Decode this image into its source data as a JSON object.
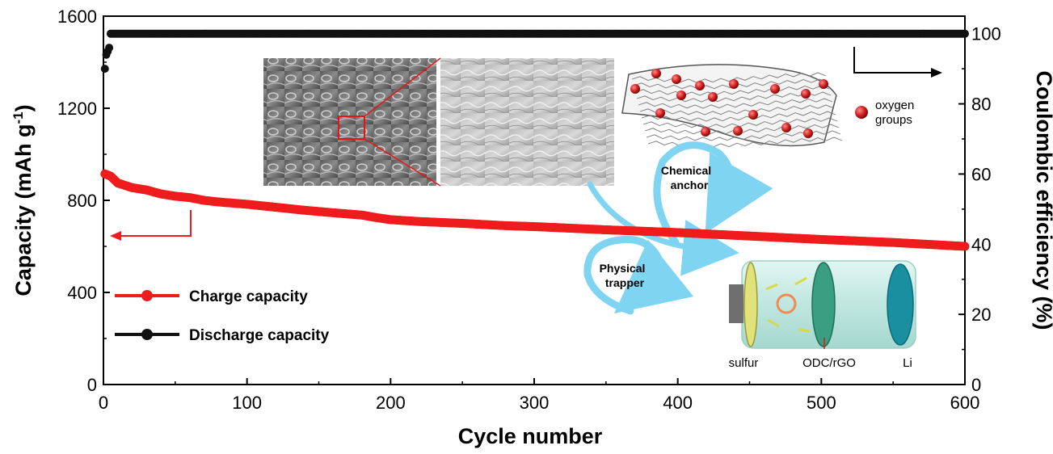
{
  "chart_data": {
    "type": "scatter",
    "xlabel": "Cycle number",
    "ylabel_left": "Capacity (mAh g",
    "ylabel_left_sup": "-1",
    "ylabel_left_end": ")",
    "ylabel_right": "Coulombic efficiency (%)",
    "xlim": [
      0,
      600
    ],
    "ylim_left": [
      0,
      1600
    ],
    "ylim_right": [
      0,
      105
    ],
    "x_ticks": [
      "0",
      "100",
      "200",
      "300",
      "400",
      "500",
      "600"
    ],
    "y_left_ticks": [
      "0",
      "400",
      "800",
      "1200",
      "1600"
    ],
    "y_right_ticks": [
      "0",
      "20",
      "40",
      "60",
      "80",
      "100"
    ],
    "grid": false,
    "legend_position": "bottom-left",
    "series": [
      {
        "name": "Charge capacity",
        "axis": "left",
        "color": "#ee1c1c",
        "x": [
          1,
          5,
          10,
          20,
          30,
          40,
          50,
          60,
          70,
          80,
          100,
          120,
          140,
          160,
          180,
          190,
          200,
          220,
          250,
          280,
          300,
          350,
          400,
          450,
          500,
          550,
          600
        ],
        "y": [
          915,
          905,
          875,
          855,
          845,
          828,
          818,
          812,
          800,
          793,
          783,
          770,
          757,
          746,
          736,
          725,
          716,
          708,
          700,
          690,
          686,
          672,
          660,
          645,
          630,
          617,
          600
        ]
      },
      {
        "name": "Discharge capacity",
        "axis": "right",
        "color": "#111111",
        "x": [
          1,
          2,
          3,
          4,
          5,
          10,
          50,
          100,
          200,
          300,
          400,
          500,
          600
        ],
        "y": [
          90,
          94,
          95,
          96,
          100,
          100,
          100,
          100,
          100,
          100,
          100,
          100,
          100
        ]
      }
    ],
    "annotations": {
      "oxygen_label": "oxygen groups",
      "oxygen_line1": "oxygen",
      "oxygen_line2": "groups",
      "chemical_line1": "Chemical",
      "chemical_line2": "anchor",
      "physical_line1": "Physical",
      "physical_line2": "trapper",
      "cell_labels": [
        "sulfur",
        "ODC/rGO",
        "Li"
      ]
    }
  },
  "colors": {
    "charge": "#ee1c1c",
    "discharge": "#111111",
    "arrow_blue": "#7fd4f2",
    "cell_body": "#c9ece6",
    "cell_li": "#1a8fa0",
    "oxygen_ball": "#d42020"
  }
}
